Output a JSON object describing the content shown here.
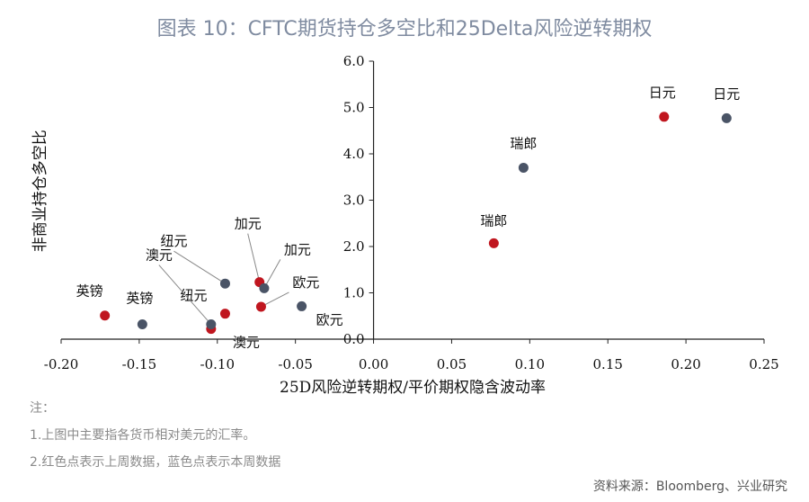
{
  "title": "图表 10：CFTC期货持仓多空比和25Delta风险逆转期权",
  "notes": {
    "heading": "注：",
    "line1": "1.上图中主要指各货币相对美元的汇率。",
    "line2": "2.红色点表示上周数据，蓝色点表示本周数据"
  },
  "source": "资料来源：Bloomberg、兴业研究",
  "colors": {
    "last_week": "#c0161f",
    "this_week": "#4a5466"
  },
  "chart_data": {
    "type": "scatter",
    "xlabel": "25D风险逆转期权/平价期权隐含波动率",
    "ylabel": "非商业持仓多空比",
    "xlim": [
      -0.2,
      0.25
    ],
    "ylim": [
      0.0,
      6.0
    ],
    "xticks": [
      "-0.20",
      "-0.15",
      "-0.10",
      "-0.05",
      "0.00",
      "0.05",
      "0.10",
      "0.15",
      "0.20",
      "0.25"
    ],
    "yticks": [
      "0.0",
      "1.0",
      "2.0",
      "3.0",
      "4.0",
      "5.0",
      "6.0"
    ],
    "series": [
      {
        "points": [
          {
            "label": "日元",
            "x": 0.186,
            "y": 4.8
          },
          {
            "label": "瑞郎",
            "x": 0.077,
            "y": 2.07
          },
          {
            "label": "加元",
            "x": -0.073,
            "y": 1.23
          },
          {
            "label": "欧元",
            "x": -0.072,
            "y": 0.7
          },
          {
            "label": "纽元",
            "x": -0.095,
            "y": 0.55
          },
          {
            "label": "澳元",
            "x": -0.104,
            "y": 0.22
          },
          {
            "label": "英镑",
            "x": -0.172,
            "y": 0.51
          }
        ]
      },
      {
        "points": [
          {
            "label": "日元",
            "x": 0.226,
            "y": 4.77
          },
          {
            "label": "瑞郎",
            "x": 0.096,
            "y": 3.7
          },
          {
            "label": "加元",
            "x": -0.07,
            "y": 1.1
          },
          {
            "label": "欧元",
            "x": -0.046,
            "y": 0.71
          },
          {
            "label": "纽元",
            "x": -0.095,
            "y": 1.2
          },
          {
            "label": "澳元",
            "x": -0.104,
            "y": 0.32
          },
          {
            "label": "英镑",
            "x": -0.148,
            "y": 0.32
          }
        ]
      }
    ]
  }
}
